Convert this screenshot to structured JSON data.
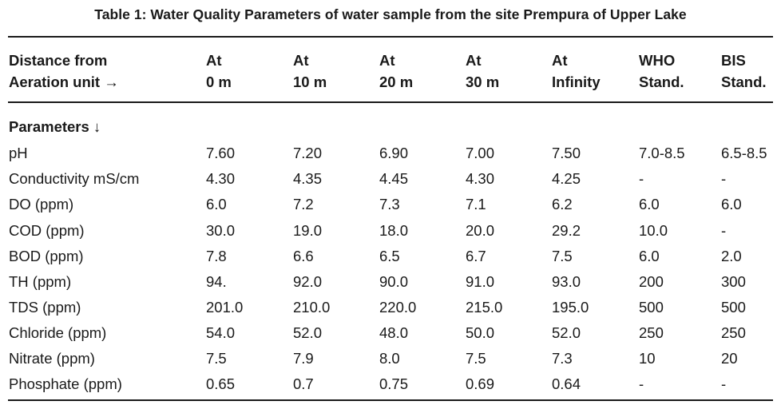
{
  "caption": "Table 1: Water Quality Parameters of water sample from the site Prempura of Upper Lake",
  "header": {
    "columns": [
      {
        "line1": "Distance from",
        "line2": "Aeration unit →"
      },
      {
        "line1": "At",
        "line2": "0 m"
      },
      {
        "line1": "At",
        "line2": "10 m"
      },
      {
        "line1": "At",
        "line2": "20 m"
      },
      {
        "line1": "At",
        "line2": "30 m"
      },
      {
        "line1": "At",
        "line2": "Infinity"
      },
      {
        "line1": "WHO",
        "line2": "Stand."
      },
      {
        "line1": "BIS",
        "line2": "Stand."
      }
    ]
  },
  "params_label": "Parameters ↓",
  "rows": [
    [
      "pH",
      "7.60",
      "7.20",
      "6.90",
      "7.00",
      "7.50",
      "7.0-8.5",
      "6.5-8.5"
    ],
    [
      "Conductivity mS/cm",
      "4.30",
      "4.35",
      "4.45",
      "4.30",
      "4.25",
      "-",
      "-"
    ],
    [
      "DO (ppm)",
      "6.0",
      "7.2",
      "7.3",
      "7.1",
      "6.2",
      "6.0",
      "6.0"
    ],
    [
      "COD (ppm)",
      "30.0",
      "19.0",
      "18.0",
      "20.0",
      "29.2",
      "10.0",
      "-"
    ],
    [
      "BOD (ppm)",
      "7.8",
      "6.6",
      "6.5",
      "6.7",
      "7.5",
      "6.0",
      "2.0"
    ],
    [
      "TH (ppm)",
      "94.",
      "92.0",
      "90.0",
      "91.0",
      "93.0",
      "200",
      "300"
    ],
    [
      "TDS (ppm)",
      "201.0",
      "210.0",
      "220.0",
      "215.0",
      "195.0",
      "500",
      "500"
    ],
    [
      "Chloride (ppm)",
      "54.0",
      "52.0",
      "48.0",
      "50.0",
      "52.0",
      "250",
      "250"
    ],
    [
      "Nitrate (ppm)",
      "7.5",
      "7.9",
      "8.0",
      "7.5",
      "7.3",
      "10",
      "20"
    ],
    [
      "Phosphate (ppm)",
      "0.65",
      "0.7",
      "0.75",
      "0.69",
      "0.64",
      "-",
      "-"
    ]
  ]
}
